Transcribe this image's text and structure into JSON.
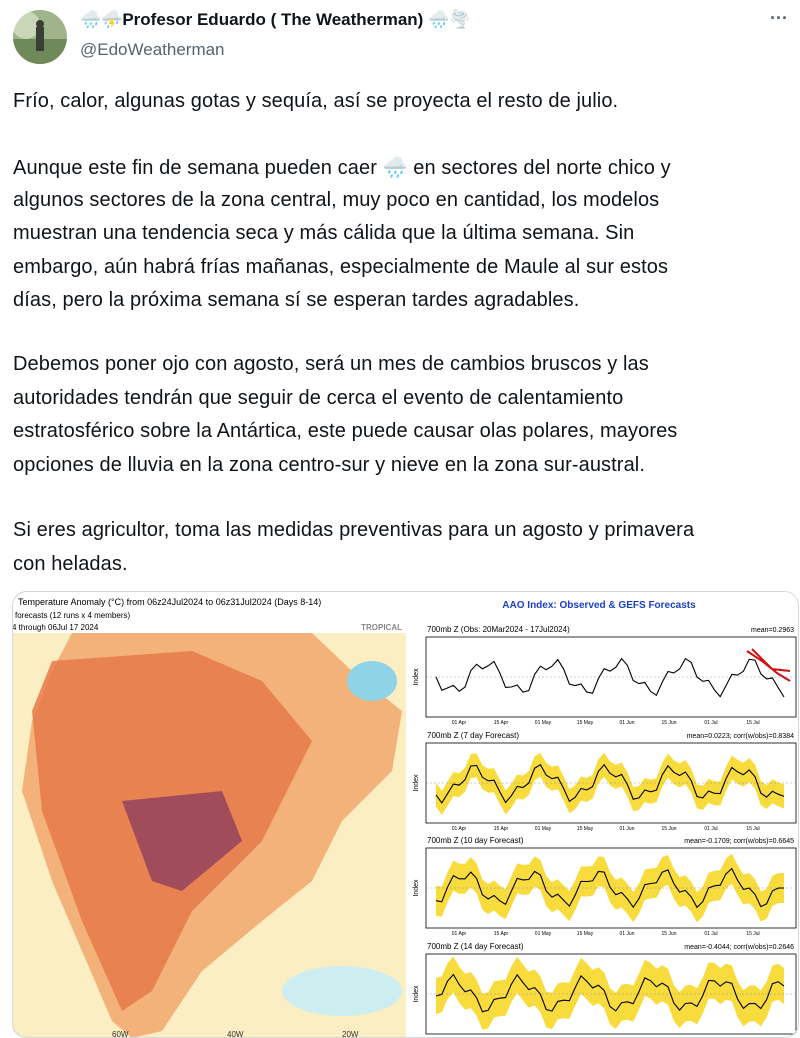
{
  "author": {
    "name": "🌧️⛈️Profesor Eduardo ( The Weatherman) 🌧️🌪️",
    "handle": "@EdoWeatherman",
    "menu": "···"
  },
  "text": {
    "paragraphs": [
      [
        "Frío, calor, algunas gotas y sequía, así se proyecta el resto de julio."
      ],
      [
        "Aunque este fin de semana pueden caer 🌧️ en sectores del norte chico y",
        "algunos sectores de la zona central, muy poco en cantidad, los modelos",
        "muestran una tendencia seca y más cálida que la última semana. Sin",
        "embargo, aún habrá frías mañanas, especialmente de Maule al sur estos",
        "días, pero la próxima semana sí se esperan tardes agradables."
      ],
      [
        "Debemos poner ojo con agosto, será un mes de cambios bruscos y las",
        "autoridades tendrán que seguir de cerca el evento de calentamiento",
        "estratosférico sobre la Antártica, este puede causar olas polares, mayores",
        "opciones de lluvia en la zona centro-sur y nieve en la zona sur-austral."
      ],
      [
        "Si eres agricultor, toma las medidas preventivas para un agosto y primavera",
        "con heladas."
      ]
    ]
  },
  "media": {
    "map": {
      "title": "Temperature Anomaly (°C) from 06z24Jul2024 to 06z31Jul2024 (Days 8-14)",
      "subtitle": "forecasts (12 runs x 4 members)",
      "date": "4 through 06Jul 17 2024",
      "label": "TROPICAL",
      "lon_labels": [
        "60W",
        "40W",
        "20W"
      ]
    },
    "aao": {
      "title": "AAO Index: Observed & GEFS Forecasts",
      "y_label": "Index",
      "x_labels": [
        "01 Apr",
        "15 Apr",
        "01 May",
        "15 May",
        "01 Jun",
        "15 Jun",
        "01 Jul",
        "15 Jul"
      ],
      "panels": [
        {
          "title": "700mb Z (Obs: 20Mar2024 - 17Jul2024)",
          "stats": "mean=0.2963"
        },
        {
          "title": "700mb Z (7 day Forecast)",
          "stats": "mean=0.0223; corr(w/obs)=0.8384"
        },
        {
          "title": "700mb Z (10 day Forecast)",
          "stats": "mean=-0.1709; corr(w/obs)=0.6645"
        },
        {
          "title": "700mb Z (14 day Forecast)",
          "stats": "mean=-0.4044; corr(w/obs)=0.2646"
        }
      ]
    }
  }
}
